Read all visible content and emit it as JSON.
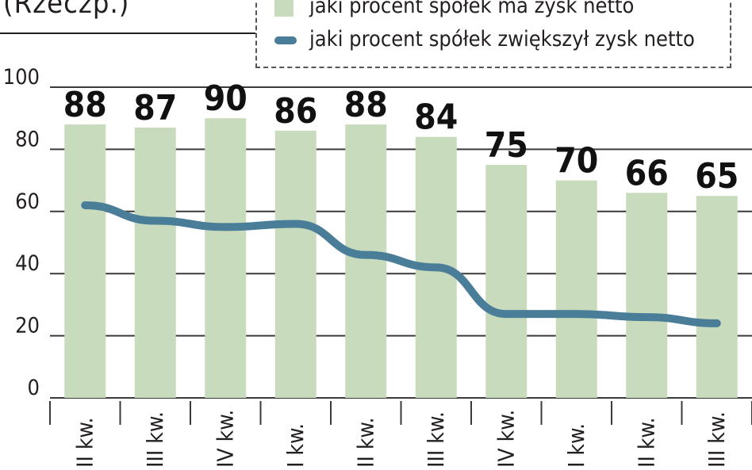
{
  "header": {
    "title": "(Rzeczp.)"
  },
  "chart_data": {
    "type": "bar",
    "categories": [
      "II kw.",
      "III kw.",
      "IV kw.",
      "I kw.",
      "II kw.",
      "III kw.",
      "IV kw.",
      "I kw.",
      "II kw.",
      "III kw."
    ],
    "series": [
      {
        "name": "jaki procent spółek ma zysk netto",
        "type": "bar",
        "color": "#c9dbbd",
        "values": [
          88,
          87,
          90,
          86,
          88,
          84,
          75,
          70,
          66,
          65
        ]
      },
      {
        "name": "jaki procent spółek zwiększył zysk netto",
        "type": "line",
        "color": "#4a7e98",
        "values": [
          62,
          57,
          55,
          56,
          46,
          42,
          27,
          27,
          26,
          24
        ]
      }
    ],
    "ylim": [
      0,
      100
    ],
    "yticks": [
      "0",
      "20",
      "40",
      "60",
      "80",
      "100"
    ],
    "grid": true,
    "legend_position": "top-right"
  }
}
